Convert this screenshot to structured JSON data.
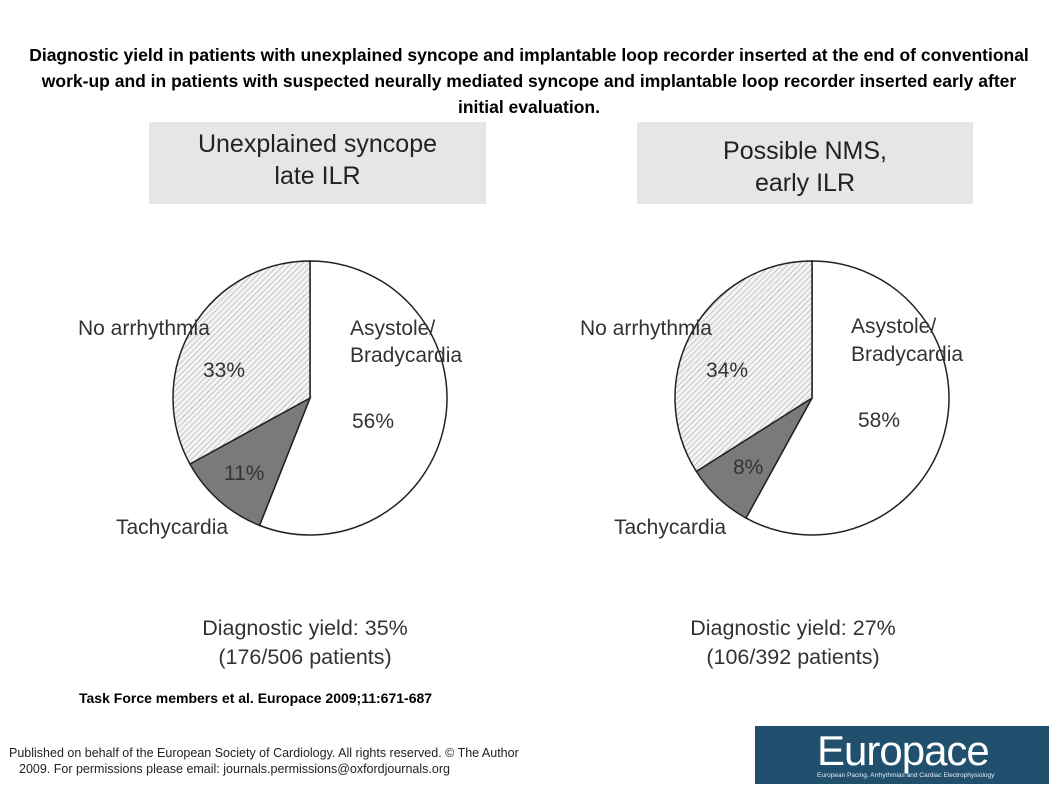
{
  "title": "Diagnostic yield in patients with unexplained syncope and implantable loop recorder inserted at the end of conventional work-up and in patients with suspected neurally mediated syncope and implantable loop recorder inserted early after initial evaluation.",
  "chart_data": [
    {
      "type": "pie",
      "title_lines": [
        "Unexplained syncope",
        "late ILR"
      ],
      "slices": [
        {
          "label": "Asystole/ Bradycardia",
          "label_lines": [
            "Asystole/",
            "Bradycardia"
          ],
          "value": 56,
          "value_label": "56%",
          "fill": "#ffffff"
        },
        {
          "label": "Tachycardia",
          "label_lines": [
            "Tachycardia"
          ],
          "value": 11,
          "value_label": "11%",
          "fill": "#7a7a7a"
        },
        {
          "label": "No arrhythmia",
          "label_lines": [
            "No arrhythmia"
          ],
          "value": 33,
          "value_label": "33%",
          "fill": "hatch"
        }
      ],
      "yield_lines": [
        "Diagnostic yield: 35%",
        "(176/506 patients)"
      ]
    },
    {
      "type": "pie",
      "title_lines": [
        "Possible NMS,",
        "early ILR"
      ],
      "slices": [
        {
          "label": "Asystole/ Bradycardia",
          "label_lines": [
            "Asystole/",
            "Bradycardia"
          ],
          "value": 58,
          "value_label": "58%",
          "fill": "#ffffff"
        },
        {
          "label": "Tachycardia",
          "label_lines": [
            "Tachycardia"
          ],
          "value": 8,
          "value_label": "8%",
          "fill": "#7a7a7a"
        },
        {
          "label": "No arrhythmia",
          "label_lines": [
            "No arrhythmia"
          ],
          "value": 34,
          "value_label": "34%",
          "fill": "hatch"
        }
      ],
      "yield_lines": [
        "Diagnostic yield: 27%",
        "(106/392 patients)"
      ]
    }
  ],
  "citation": "Task Force members et al. Europace 2009;11:671-687",
  "footer": {
    "line1": "Published on behalf of the European Society of Cardiology. All rights reserved. © The Author",
    "line2": "2009. For permissions please email: journals.permissions@oxfordjournals.org"
  },
  "logo": {
    "word": "Europace",
    "subtitle": "European Pacing, Arrhythmias and Cardiac Electrophysiology"
  }
}
